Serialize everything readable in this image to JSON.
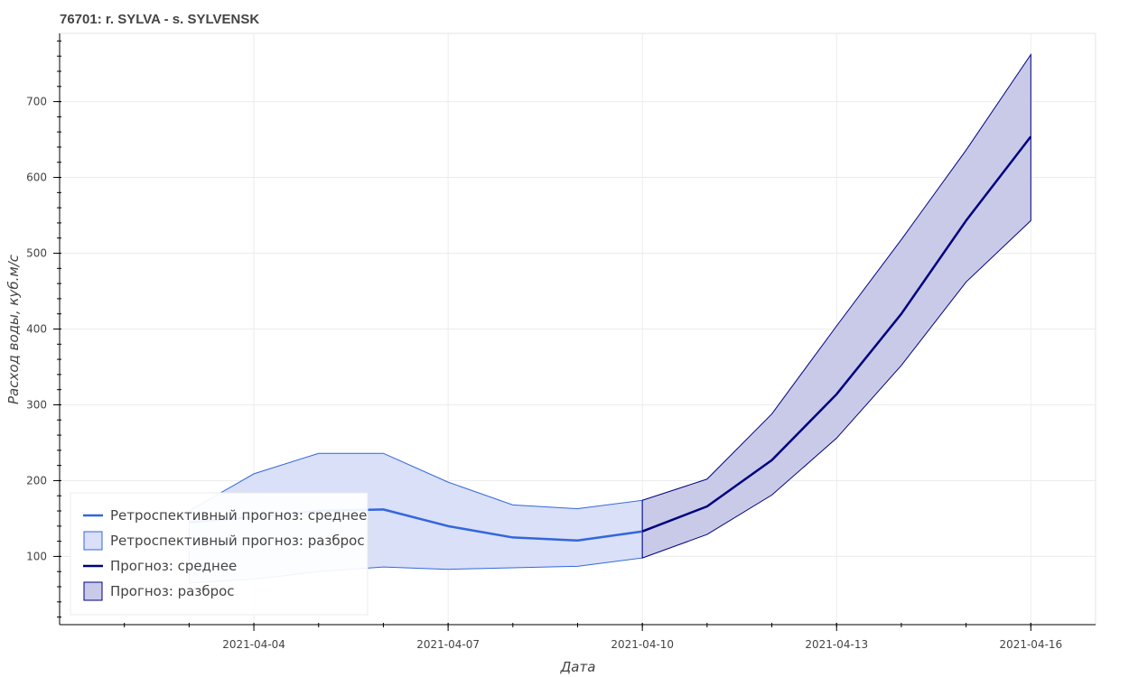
{
  "chart_data": {
    "type": "area",
    "title": "76701: r. SYLVA - s. SYLVENSK",
    "xlabel": "Дата",
    "ylabel": "Расход воды, куб.м/с",
    "x_range": [
      "2021-04-01",
      "2021-04-17"
    ],
    "ylim": [
      10,
      790
    ],
    "y_ticks": [
      100,
      200,
      300,
      400,
      500,
      600,
      700
    ],
    "x_ticks": [
      "2021-04-04",
      "2021-04-07",
      "2021-04-10",
      "2021-04-13",
      "2021-04-16"
    ],
    "grid": true,
    "legend_position": "bottom-left",
    "series": [
      {
        "name": "Ретроспективный прогноз: среднее",
        "kind": "line",
        "color": "#3366dd",
        "x": [
          "2021-04-03",
          "2021-04-04",
          "2021-04-05",
          "2021-04-06",
          "2021-04-07",
          "2021-04-08",
          "2021-04-09",
          "2021-04-10"
        ],
        "values": [
          145,
          152,
          160,
          162,
          140,
          125,
          121,
          133
        ]
      },
      {
        "name": "Ретроспективный прогноз: разброс",
        "kind": "band",
        "color": "#3366dd",
        "fill": "#d9e0f7",
        "x": [
          "2021-04-03",
          "2021-04-04",
          "2021-04-05",
          "2021-04-06",
          "2021-04-07",
          "2021-04-08",
          "2021-04-09",
          "2021-04-10"
        ],
        "lower": [
          65,
          70,
          80,
          86,
          83,
          85,
          87,
          98
        ],
        "upper": [
          160,
          209,
          236,
          236,
          198,
          168,
          163,
          174
        ]
      },
      {
        "name": "Прогноз: среднее",
        "kind": "line",
        "color": "#000080",
        "x": [
          "2021-04-10",
          "2021-04-11",
          "2021-04-12",
          "2021-04-13",
          "2021-04-14",
          "2021-04-15",
          "2021-04-16"
        ],
        "values": [
          133,
          166,
          227,
          314,
          420,
          543,
          654
        ]
      },
      {
        "name": "Прогноз: разброс",
        "kind": "band",
        "color": "#000080",
        "fill": "#c9cae8",
        "x": [
          "2021-04-10",
          "2021-04-11",
          "2021-04-12",
          "2021-04-13",
          "2021-04-14",
          "2021-04-15",
          "2021-04-16"
        ],
        "lower": [
          98,
          129,
          181,
          256,
          352,
          462,
          543
        ],
        "upper": [
          174,
          202,
          288,
          404,
          518,
          636,
          762
        ]
      }
    ]
  }
}
